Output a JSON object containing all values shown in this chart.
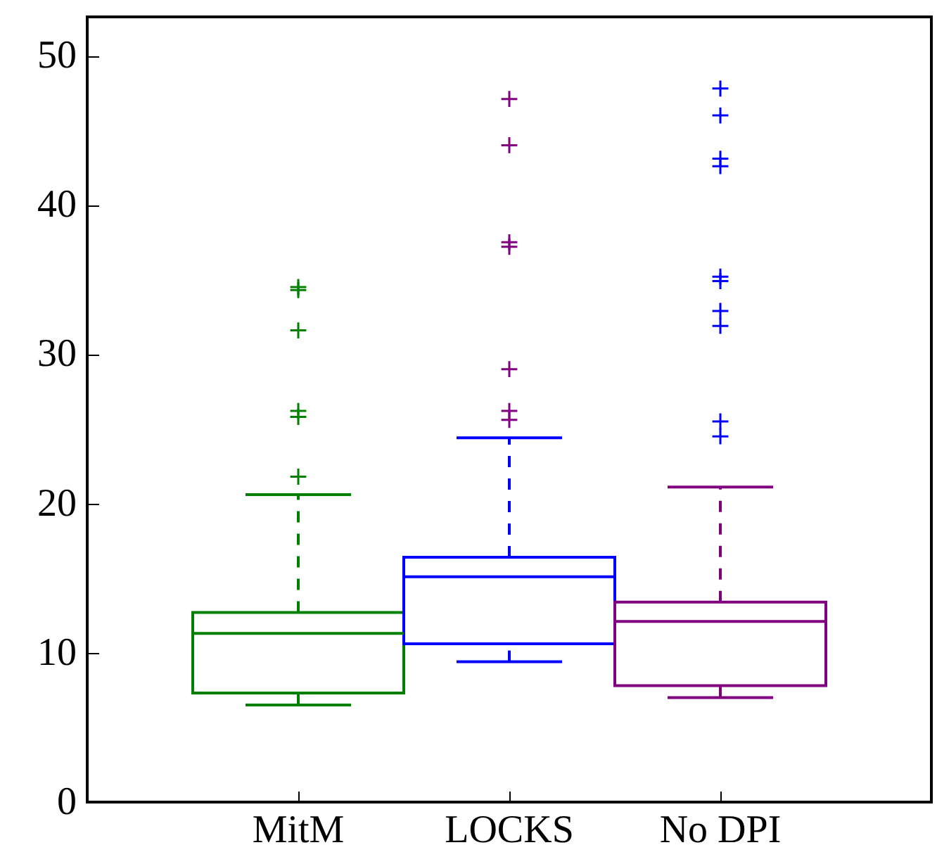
{
  "chart_data": {
    "type": "box",
    "categories": [
      "MitM",
      "LOCKS",
      "No DPI"
    ],
    "ylim": [
      0,
      52.6
    ],
    "yticks": [
      0,
      10,
      20,
      30,
      40,
      50
    ],
    "marker": "cross",
    "line_style": "dashed",
    "series": [
      {
        "type": "box",
        "colors": [
          "#008000",
          "#0000ff",
          "#800080"
        ],
        "boxes": [
          {
            "low": 6.5,
            "q1": 7.3,
            "median": 11.3,
            "q3": 12.7,
            "high": 20.6
          },
          {
            "low": 9.4,
            "q1": 10.6,
            "median": 15.1,
            "q3": 16.4,
            "high": 24.4
          },
          {
            "low": 7.0,
            "q1": 7.8,
            "median": 12.1,
            "q3": 13.4,
            "high": 21.1
          }
        ]
      },
      {
        "type": "scatter",
        "x": [
          "MitM",
          "MitM",
          "MitM",
          "MitM",
          "MitM",
          "MitM",
          "LOCKS",
          "LOCKS",
          "LOCKS",
          "LOCKS",
          "LOCKS",
          "LOCKS",
          "LOCKS",
          "No DPI",
          "No DPI",
          "No DPI",
          "No DPI",
          "No DPI",
          "No DPI",
          "No DPI",
          "No DPI",
          "No DPI",
          "No DPI"
        ],
        "values": [
          21.8,
          25.8,
          26.2,
          31.6,
          34.3,
          34.5,
          25.6,
          26.2,
          29.0,
          37.2,
          37.5,
          44.0,
          47.1,
          24.5,
          25.5,
          31.9,
          32.9,
          34.9,
          35.2,
          42.6,
          43.1,
          46.0,
          47.8
        ],
        "colors": [
          "#008000",
          "#008000",
          "#008000",
          "#008000",
          "#008000",
          "#008000",
          "#800080",
          "#800080",
          "#800080",
          "#800080",
          "#800080",
          "#800080",
          "#800080",
          "#0000ff",
          "#0000ff",
          "#0000ff",
          "#0000ff",
          "#0000ff",
          "#0000ff",
          "#0000ff",
          "#0000ff",
          "#0000ff",
          "#0000ff"
        ]
      }
    ]
  }
}
